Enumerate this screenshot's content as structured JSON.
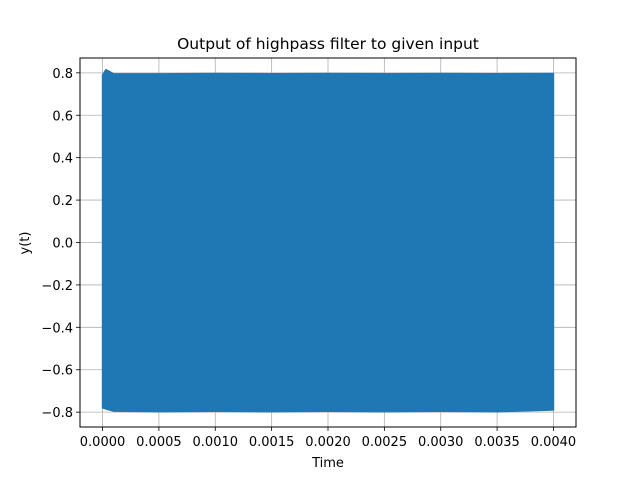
{
  "chart_data": {
    "type": "line",
    "title": "Output of highpass filter to given input",
    "xlabel": "Time",
    "ylabel": "y(t)",
    "xlim": [
      -0.0002,
      0.0042
    ],
    "ylim": [
      -0.87,
      0.87
    ],
    "x_ticks": [
      0.0,
      0.0005,
      0.001,
      0.0015,
      0.002,
      0.0025,
      0.003,
      0.0035,
      0.004
    ],
    "x_tick_labels": [
      "0.0000",
      "0.0005",
      "0.0010",
      "0.0015",
      "0.0020",
      "0.0025",
      "0.0030",
      "0.0035",
      "0.0040"
    ],
    "y_ticks": [
      -0.8,
      -0.6,
      -0.4,
      -0.2,
      0.0,
      0.2,
      0.4,
      0.6,
      0.8
    ],
    "y_tick_labels": [
      "−0.8",
      "−0.6",
      "−0.4",
      "−0.2",
      "0.0",
      "0.2",
      "0.4",
      "0.6",
      "0.8"
    ],
    "grid": true,
    "series": [
      {
        "color": "#1f77b4",
        "description_x_range": [
          0.0,
          0.004
        ],
        "envelope_upper": {
          "x": [
            0.0,
            3e-05,
            0.0001,
            0.0005,
            0.001,
            0.0015,
            0.002,
            0.0025,
            0.003,
            0.0035,
            0.004
          ],
          "y": [
            0.79,
            0.815,
            0.795,
            0.795,
            0.797,
            0.796,
            0.797,
            0.796,
            0.797,
            0.796,
            0.797
          ]
        },
        "envelope_lower": {
          "x": [
            0.0,
            3e-05,
            0.0001,
            0.0005,
            0.001,
            0.0015,
            0.002,
            0.0025,
            0.003,
            0.0035,
            0.004
          ],
          "y": [
            -0.78,
            -0.785,
            -0.795,
            -0.798,
            -0.796,
            -0.798,
            -0.796,
            -0.798,
            -0.796,
            -0.798,
            -0.79
          ]
        }
      }
    ]
  }
}
